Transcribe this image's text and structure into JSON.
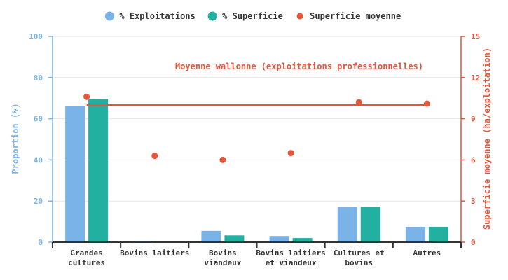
{
  "chart_data": {
    "type": "bar",
    "categories": [
      [
        "Grandes",
        "cultures"
      ],
      [
        "Bovins laitiers"
      ],
      [
        "Bovins",
        "viandeux"
      ],
      [
        "Bovins laitiers",
        "et viandeux"
      ],
      [
        "Cultures et",
        "bovins"
      ],
      [
        "Autres"
      ]
    ],
    "series": [
      {
        "name": "% Exploitations",
        "axis": "left",
        "color": "#7ab3e8",
        "values": [
          66,
          0.5,
          5.5,
          3,
          17,
          7.5
        ]
      },
      {
        "name": "% Superficie",
        "axis": "left",
        "color": "#22b0a0",
        "values": [
          69.5,
          0,
          3.3,
          2,
          17.3,
          7.5
        ]
      }
    ],
    "scatter": {
      "name": "Superficie moyenne",
      "axis": "right",
      "color": "#e8553a",
      "values": [
        10.6,
        6.3,
        6.0,
        6.5,
        10.2,
        10.1
      ]
    },
    "reference_line": {
      "label": "Moyenne wallonne (exploitations professionnelles)",
      "value": 10.0,
      "color": "#e8553a"
    },
    "ylabel": "Proportion (%)",
    "y2label": "Superficie moyenne (ha/exploitation)",
    "ylim": [
      0,
      100
    ],
    "y2lim": [
      0,
      15
    ],
    "yticks": [
      "0",
      "20",
      "40",
      "60",
      "80",
      "100"
    ],
    "y2ticks": [
      "0",
      "3",
      "6",
      "9",
      "12",
      "15"
    ],
    "grid": true,
    "legend_position": "top-center"
  }
}
